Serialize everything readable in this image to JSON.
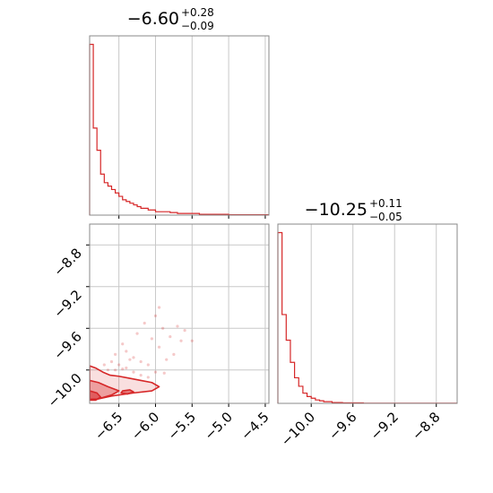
{
  "chart_data": {
    "type": "corner",
    "color": "#d62728",
    "grid": true,
    "parameters": [
      {
        "title_median": "−6.60",
        "title_plus": "+0.28",
        "title_minus": "−0.09",
        "range": [
          -6.9,
          -4.45
        ],
        "tick_values": [
          -6.5,
          -6.0,
          -5.5,
          -5.0,
          -4.5
        ],
        "tick_labels": [
          "−6.5",
          "−6.0",
          "−5.5",
          "−5.0",
          "−4.5"
        ],
        "hist_bin_edges": [
          -6.9,
          -6.85,
          -6.8,
          -6.75,
          -6.7,
          -6.65,
          -6.6,
          -6.55,
          -6.5,
          -6.45,
          -6.4,
          -6.35,
          -6.3,
          -6.25,
          -6.2,
          -6.15,
          -6.1,
          -6.05,
          -6.0,
          -5.9,
          -5.8,
          -5.7,
          -5.6,
          -5.4,
          -5.2,
          -5.0,
          -4.45
        ],
        "hist_counts": [
          100,
          51,
          38,
          24,
          19,
          17,
          15,
          13,
          11,
          9,
          8,
          7,
          6,
          5,
          4,
          4,
          3,
          3,
          2,
          2,
          1.5,
          1,
          1,
          0.5,
          0.5,
          0.2
        ]
      },
      {
        "title_median": "−10.25",
        "title_plus": "+0.11",
        "title_minus": "−0.05",
        "range": [
          -10.32,
          -8.6
        ],
        "tick_values": [
          -10.0,
          -9.6,
          -9.2,
          -8.8
        ],
        "tick_labels": [
          "−10.0",
          "−9.6",
          "−9.2",
          "−8.8"
        ],
        "hist_bin_edges": [
          -10.32,
          -10.28,
          -10.24,
          -10.2,
          -10.16,
          -10.12,
          -10.08,
          -10.04,
          -10.0,
          -9.96,
          -9.92,
          -9.88,
          -9.84,
          -9.8,
          -9.7,
          -9.5,
          -8.6
        ],
        "hist_counts": [
          100,
          52,
          37,
          24,
          15,
          10,
          6,
          4,
          3,
          2,
          1.5,
          1,
          1,
          0.5,
          0.3,
          0.1
        ]
      }
    ],
    "scatter_points": [
      [
        -6.45,
        -9.75
      ],
      [
        -6.4,
        -9.82
      ],
      [
        -6.3,
        -9.88
      ],
      [
        -6.2,
        -9.92
      ],
      [
        -6.1,
        -9.95
      ],
      [
        -6.05,
        -9.7
      ],
      [
        -5.95,
        -9.78
      ],
      [
        -5.9,
        -9.6
      ],
      [
        -5.85,
        -9.9
      ],
      [
        -5.8,
        -9.68
      ],
      [
        -5.75,
        -9.85
      ],
      [
        -5.7,
        -9.58
      ],
      [
        -5.65,
        -9.72
      ],
      [
        -5.6,
        -9.62
      ],
      [
        -6.15,
        -9.55
      ],
      [
        -6.25,
        -9.65
      ],
      [
        -6.35,
        -9.9
      ],
      [
        -6.5,
        -9.95
      ],
      [
        -6.55,
        -9.85
      ],
      [
        -6.6,
        -9.92
      ],
      [
        -5.95,
        -9.4
      ],
      [
        -6.0,
        -9.48
      ],
      [
        -5.5,
        -9.72
      ],
      [
        -6.4,
        -9.98
      ],
      [
        -6.7,
        -9.95
      ],
      [
        -6.65,
        -10.0
      ],
      [
        -6.3,
        -10.02
      ],
      [
        -6.2,
        -10.05
      ],
      [
        -6.1,
        -10.07
      ],
      [
        -6.0,
        -10.02
      ],
      [
        -5.88,
        -10.03
      ],
      [
        -6.55,
        -10.0
      ],
      [
        -6.45,
        -9.99
      ]
    ],
    "contours": [
      {
        "level": "outer",
        "points": [
          [
            -6.9,
            -10.28
          ],
          [
            -6.9,
            -9.96
          ],
          [
            -6.82,
            -9.98
          ],
          [
            -6.72,
            -10.02
          ],
          [
            -6.62,
            -10.05
          ],
          [
            -6.5,
            -10.06
          ],
          [
            -6.35,
            -10.08
          ],
          [
            -6.2,
            -10.1
          ],
          [
            -6.05,
            -10.12
          ],
          [
            -5.95,
            -10.16
          ],
          [
            -6.05,
            -10.2
          ],
          [
            -6.3,
            -10.22
          ],
          [
            -6.6,
            -10.25
          ],
          [
            -6.8,
            -10.28
          ]
        ]
      },
      {
        "level": "inner",
        "points": [
          [
            -6.9,
            -10.28
          ],
          [
            -6.9,
            -10.1
          ],
          [
            -6.78,
            -10.12
          ],
          [
            -6.65,
            -10.16
          ],
          [
            -6.5,
            -10.2
          ],
          [
            -6.6,
            -10.24
          ],
          [
            -6.8,
            -10.28
          ]
        ]
      },
      {
        "level": "core",
        "points": [
          [
            -6.9,
            -10.29
          ],
          [
            -6.9,
            -10.2
          ],
          [
            -6.8,
            -10.22
          ],
          [
            -6.75,
            -10.26
          ],
          [
            -6.82,
            -10.29
          ]
        ]
      },
      {
        "level": "island",
        "points": [
          [
            -6.45,
            -10.2
          ],
          [
            -6.35,
            -10.19
          ],
          [
            -6.3,
            -10.21
          ],
          [
            -6.38,
            -10.23
          ],
          [
            -6.47,
            -10.22
          ]
        ]
      }
    ]
  },
  "panels": {
    "hist1_title": {
      "median": "−6.60",
      "plus": "+0.28",
      "minus": "−0.09"
    },
    "hist2_title": {
      "median": "−10.25",
      "plus": "+0.11",
      "minus": "−0.05"
    }
  }
}
